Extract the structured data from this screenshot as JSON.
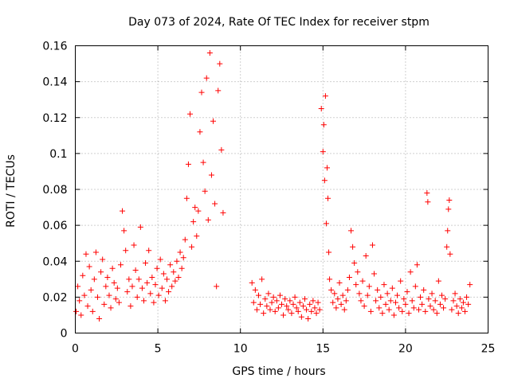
{
  "chart_data": {
    "type": "scatter",
    "title": "Day 073 of 2024, Rate Of TEC Index for receiver stpm",
    "xlabel": "GPS time / hours",
    "ylabel": "ROTI / TECUs",
    "xlim": [
      0,
      25
    ],
    "ylim": [
      0,
      0.16
    ],
    "xticks": [
      0,
      5,
      10,
      15,
      20,
      25
    ],
    "yticks": [
      0,
      0.02,
      0.04,
      0.06,
      0.08,
      0.1,
      0.12,
      0.14,
      0.16
    ],
    "xtick_labels": [
      "0",
      "5",
      "10",
      "15",
      "20",
      "25"
    ],
    "ytick_labels": [
      "0",
      "0.02",
      "0.04",
      "0.06",
      "0.08",
      "0.1",
      "0.12",
      "0.14",
      "0.16"
    ],
    "grid": true,
    "marker": "+",
    "color": "#ff0000",
    "series": [
      {
        "name": "ROTI",
        "points": [
          [
            0.05,
            0.012
          ],
          [
            0.15,
            0.026
          ],
          [
            0.25,
            0.018
          ],
          [
            0.35,
            0.01
          ],
          [
            0.45,
            0.032
          ],
          [
            0.55,
            0.021
          ],
          [
            0.65,
            0.044
          ],
          [
            0.75,
            0.015
          ],
          [
            0.85,
            0.037
          ],
          [
            0.95,
            0.024
          ],
          [
            1.05,
            0.012
          ],
          [
            1.15,
            0.03
          ],
          [
            1.25,
            0.045
          ],
          [
            1.35,
            0.02
          ],
          [
            1.45,
            0.008
          ],
          [
            1.55,
            0.034
          ],
          [
            1.65,
            0.041
          ],
          [
            1.75,
            0.016
          ],
          [
            1.85,
            0.026
          ],
          [
            1.95,
            0.031
          ],
          [
            2.05,
            0.021
          ],
          [
            2.15,
            0.014
          ],
          [
            2.25,
            0.036
          ],
          [
            2.35,
            0.028
          ],
          [
            2.45,
            0.019
          ],
          [
            2.55,
            0.025
          ],
          [
            2.65,
            0.017
          ],
          [
            2.75,
            0.038
          ],
          [
            2.85,
            0.068
          ],
          [
            2.95,
            0.057
          ],
          [
            3.05,
            0.046
          ],
          [
            3.15,
            0.023
          ],
          [
            3.25,
            0.03
          ],
          [
            3.35,
            0.015
          ],
          [
            3.45,
            0.026
          ],
          [
            3.55,
            0.049
          ],
          [
            3.65,
            0.035
          ],
          [
            3.75,
            0.02
          ],
          [
            3.85,
            0.03
          ],
          [
            3.95,
            0.059
          ],
          [
            4.05,
            0.025
          ],
          [
            4.15,
            0.018
          ],
          [
            4.25,
            0.039
          ],
          [
            4.35,
            0.028
          ],
          [
            4.45,
            0.046
          ],
          [
            4.55,
            0.022
          ],
          [
            4.65,
            0.031
          ],
          [
            4.75,
            0.017
          ],
          [
            4.85,
            0.027
          ],
          [
            4.95,
            0.036
          ],
          [
            5.05,
            0.021
          ],
          [
            5.15,
            0.041
          ],
          [
            5.25,
            0.025
          ],
          [
            5.35,
            0.033
          ],
          [
            5.45,
            0.018
          ],
          [
            5.55,
            0.03
          ],
          [
            5.65,
            0.023
          ],
          [
            5.75,
            0.038
          ],
          [
            5.85,
            0.026
          ],
          [
            5.95,
            0.034
          ],
          [
            6.05,
            0.029
          ],
          [
            6.15,
            0.04
          ],
          [
            6.25,
            0.031
          ],
          [
            6.35,
            0.045
          ],
          [
            6.45,
            0.036
          ],
          [
            6.55,
            0.042
          ],
          [
            6.65,
            0.052
          ],
          [
            6.75,
            0.075
          ],
          [
            6.85,
            0.094
          ],
          [
            6.95,
            0.122
          ],
          [
            7.05,
            0.048
          ],
          [
            7.15,
            0.062
          ],
          [
            7.25,
            0.07
          ],
          [
            7.35,
            0.054
          ],
          [
            7.45,
            0.068
          ],
          [
            7.55,
            0.112
          ],
          [
            7.65,
            0.134
          ],
          [
            7.75,
            0.095
          ],
          [
            7.85,
            0.079
          ],
          [
            7.95,
            0.142
          ],
          [
            8.05,
            0.063
          ],
          [
            8.15,
            0.156
          ],
          [
            8.25,
            0.088
          ],
          [
            8.35,
            0.118
          ],
          [
            8.45,
            0.072
          ],
          [
            8.55,
            0.026
          ],
          [
            8.65,
            0.135
          ],
          [
            8.75,
            0.15
          ],
          [
            8.85,
            0.102
          ],
          [
            8.95,
            0.067
          ],
          [
            10.7,
            0.028
          ],
          [
            10.8,
            0.017
          ],
          [
            10.9,
            0.024
          ],
          [
            11.0,
            0.013
          ],
          [
            11.1,
            0.021
          ],
          [
            11.2,
            0.016
          ],
          [
            11.3,
            0.03
          ],
          [
            11.4,
            0.011
          ],
          [
            11.5,
            0.019
          ],
          [
            11.6,
            0.015
          ],
          [
            11.7,
            0.022
          ],
          [
            11.8,
            0.013
          ],
          [
            11.9,
            0.017
          ],
          [
            12.0,
            0.02
          ],
          [
            12.1,
            0.012
          ],
          [
            12.2,
            0.018
          ],
          [
            12.3,
            0.014
          ],
          [
            12.4,
            0.021
          ],
          [
            12.5,
            0.016
          ],
          [
            12.6,
            0.01
          ],
          [
            12.7,
            0.019
          ],
          [
            12.8,
            0.015
          ],
          [
            12.9,
            0.013
          ],
          [
            13.0,
            0.018
          ],
          [
            13.1,
            0.011
          ],
          [
            13.2,
            0.016
          ],
          [
            13.3,
            0.02
          ],
          [
            13.4,
            0.014
          ],
          [
            13.5,
            0.012
          ],
          [
            13.6,
            0.017
          ],
          [
            13.7,
            0.009
          ],
          [
            13.8,
            0.015
          ],
          [
            13.9,
            0.019
          ],
          [
            14.0,
            0.013
          ],
          [
            14.1,
            0.008
          ],
          [
            14.2,
            0.016
          ],
          [
            14.3,
            0.012
          ],
          [
            14.4,
            0.018
          ],
          [
            14.5,
            0.014
          ],
          [
            14.6,
            0.011
          ],
          [
            14.7,
            0.017
          ],
          [
            14.8,
            0.013
          ],
          [
            14.9,
            0.125
          ],
          [
            15.0,
            0.101
          ],
          [
            15.05,
            0.116
          ],
          [
            15.1,
            0.085
          ],
          [
            15.15,
            0.132
          ],
          [
            15.2,
            0.061
          ],
          [
            15.25,
            0.092
          ],
          [
            15.3,
            0.075
          ],
          [
            15.35,
            0.045
          ],
          [
            15.4,
            0.03
          ],
          [
            15.5,
            0.024
          ],
          [
            15.6,
            0.017
          ],
          [
            15.7,
            0.022
          ],
          [
            15.8,
            0.014
          ],
          [
            15.9,
            0.019
          ],
          [
            16.0,
            0.028
          ],
          [
            16.1,
            0.016
          ],
          [
            16.2,
            0.021
          ],
          [
            16.3,
            0.013
          ],
          [
            16.4,
            0.018
          ],
          [
            16.5,
            0.024
          ],
          [
            16.6,
            0.031
          ],
          [
            16.7,
            0.057
          ],
          [
            16.8,
            0.048
          ],
          [
            16.9,
            0.039
          ],
          [
            17.0,
            0.027
          ],
          [
            17.1,
            0.034
          ],
          [
            17.2,
            0.022
          ],
          [
            17.3,
            0.018
          ],
          [
            17.4,
            0.029
          ],
          [
            17.5,
            0.015
          ],
          [
            17.6,
            0.043
          ],
          [
            17.7,
            0.021
          ],
          [
            17.8,
            0.026
          ],
          [
            17.9,
            0.012
          ],
          [
            18.0,
            0.049
          ],
          [
            18.1,
            0.033
          ],
          [
            18.2,
            0.018
          ],
          [
            18.3,
            0.024
          ],
          [
            18.4,
            0.014
          ],
          [
            18.5,
            0.02
          ],
          [
            18.6,
            0.011
          ],
          [
            18.7,
            0.027
          ],
          [
            18.8,
            0.016
          ],
          [
            18.9,
            0.022
          ],
          [
            19.0,
            0.013
          ],
          [
            19.1,
            0.018
          ],
          [
            19.2,
            0.025
          ],
          [
            19.3,
            0.01
          ],
          [
            19.4,
            0.017
          ],
          [
            19.5,
            0.021
          ],
          [
            19.6,
            0.014
          ],
          [
            19.7,
            0.029
          ],
          [
            19.8,
            0.012
          ],
          [
            19.9,
            0.019
          ],
          [
            20.0,
            0.016
          ],
          [
            20.1,
            0.023
          ],
          [
            20.2,
            0.011
          ],
          [
            20.3,
            0.034
          ],
          [
            20.4,
            0.018
          ],
          [
            20.5,
            0.014
          ],
          [
            20.6,
            0.026
          ],
          [
            20.7,
            0.038
          ],
          [
            20.8,
            0.013
          ],
          [
            20.9,
            0.02
          ],
          [
            21.0,
            0.016
          ],
          [
            21.1,
            0.024
          ],
          [
            21.2,
            0.012
          ],
          [
            21.3,
            0.078
          ],
          [
            21.35,
            0.073
          ],
          [
            21.4,
            0.019
          ],
          [
            21.5,
            0.015
          ],
          [
            21.6,
            0.022
          ],
          [
            21.7,
            0.013
          ],
          [
            21.8,
            0.018
          ],
          [
            21.9,
            0.011
          ],
          [
            22.0,
            0.029
          ],
          [
            22.1,
            0.016
          ],
          [
            22.2,
            0.021
          ],
          [
            22.3,
            0.014
          ],
          [
            22.4,
            0.019
          ],
          [
            22.5,
            0.048
          ],
          [
            22.55,
            0.057
          ],
          [
            22.6,
            0.069
          ],
          [
            22.65,
            0.074
          ],
          [
            22.7,
            0.044
          ],
          [
            22.8,
            0.013
          ],
          [
            22.9,
            0.018
          ],
          [
            23.0,
            0.022
          ],
          [
            23.1,
            0.015
          ],
          [
            23.2,
            0.011
          ],
          [
            23.3,
            0.019
          ],
          [
            23.4,
            0.014
          ],
          [
            23.5,
            0.017
          ],
          [
            23.6,
            0.012
          ],
          [
            23.7,
            0.02
          ],
          [
            23.8,
            0.016
          ],
          [
            23.9,
            0.027
          ]
        ]
      }
    ]
  }
}
